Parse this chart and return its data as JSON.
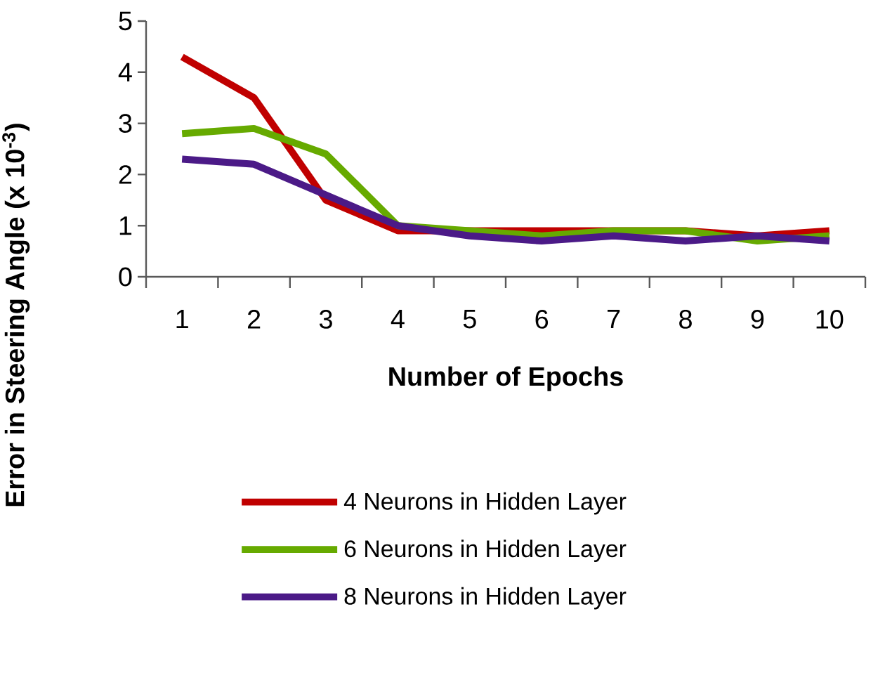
{
  "chart_data": {
    "type": "line",
    "xlabel": "Number of Epochs",
    "ylabel": "Error in Steering Angle (x 10$^{-3}$)",
    "categories": [
      "1",
      "2",
      "3",
      "4",
      "5",
      "6",
      "7",
      "8",
      "9",
      "10"
    ],
    "ylim": [
      0,
      5
    ],
    "yticks": [
      0,
      1,
      2,
      3,
      4,
      5
    ],
    "grid": false,
    "legend": "bottom",
    "marker": "none",
    "line_style": "solid",
    "series": [
      {
        "name": "4 Neurons in Hidden Layer",
        "color": "#c00000",
        "values": [
          4.3,
          3.5,
          1.5,
          0.9,
          0.9,
          0.9,
          0.9,
          0.9,
          0.8,
          0.9
        ]
      },
      {
        "name": "6 Neurons in Hidden Layer",
        "color": "#66aa00",
        "values": [
          2.8,
          2.9,
          2.4,
          1.0,
          0.9,
          0.8,
          0.9,
          0.9,
          0.7,
          0.8
        ]
      },
      {
        "name": "8 Neurons in Hidden Layer",
        "color": "#4b1a87",
        "values": [
          2.3,
          2.2,
          1.6,
          1.0,
          0.8,
          0.7,
          0.8,
          0.7,
          0.8,
          0.7
        ]
      }
    ]
  }
}
